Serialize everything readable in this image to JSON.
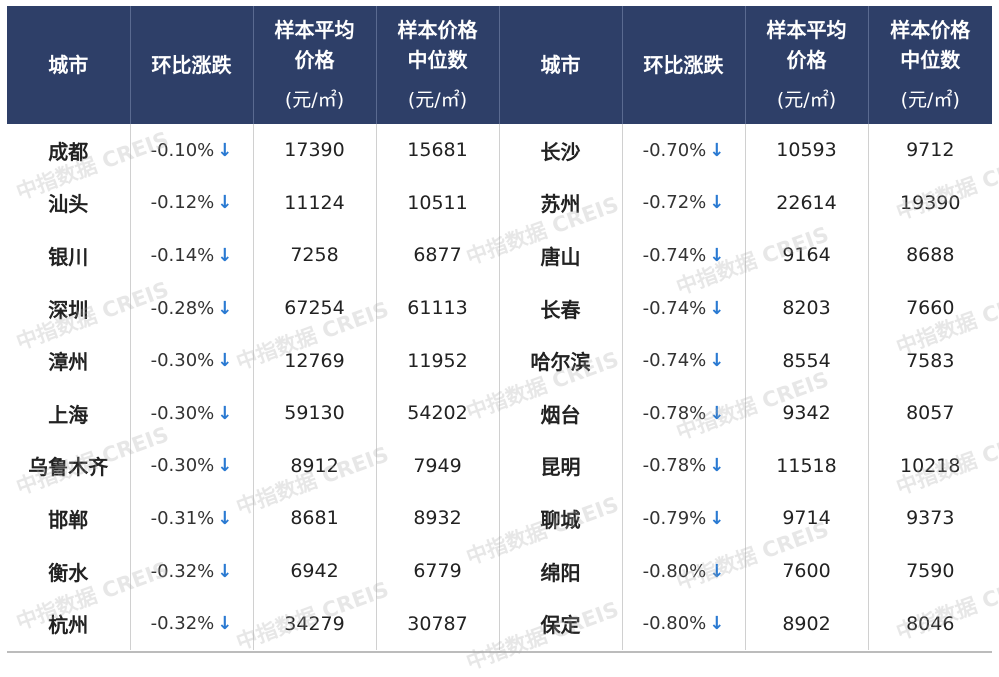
{
  "headers": {
    "city": "城市",
    "change": "环比涨跌",
    "avg_line1": "样本平均",
    "avg_line2": "价格",
    "median_line1": "样本价格",
    "median_line2": "中位数",
    "unit": "(元/㎡)"
  },
  "arrow": "↓",
  "left_rows": [
    {
      "city": "成都",
      "change": "-0.10%",
      "avg": "17390",
      "median": "15681"
    },
    {
      "city": "汕头",
      "change": "-0.12%",
      "avg": "11124",
      "median": "10511"
    },
    {
      "city": "银川",
      "change": "-0.14%",
      "avg": "7258",
      "median": "6877"
    },
    {
      "city": "深圳",
      "change": "-0.28%",
      "avg": "67254",
      "median": "61113"
    },
    {
      "city": "漳州",
      "change": "-0.30%",
      "avg": "12769",
      "median": "11952"
    },
    {
      "city": "上海",
      "change": "-0.30%",
      "avg": "59130",
      "median": "54202"
    },
    {
      "city": "乌鲁木齐",
      "change": "-0.30%",
      "avg": "8912",
      "median": "7949"
    },
    {
      "city": "邯郸",
      "change": "-0.31%",
      "avg": "8681",
      "median": "8932"
    },
    {
      "city": "衡水",
      "change": "-0.32%",
      "avg": "6942",
      "median": "6779"
    },
    {
      "city": "杭州",
      "change": "-0.32%",
      "avg": "34279",
      "median": "30787"
    }
  ],
  "right_rows": [
    {
      "city": "长沙",
      "change": "-0.70%",
      "avg": "10593",
      "median": "9712"
    },
    {
      "city": "苏州",
      "change": "-0.72%",
      "avg": "22614",
      "median": "19390"
    },
    {
      "city": "唐山",
      "change": "-0.74%",
      "avg": "9164",
      "median": "8688"
    },
    {
      "city": "长春",
      "change": "-0.74%",
      "avg": "8203",
      "median": "7660"
    },
    {
      "city": "哈尔滨",
      "change": "-0.74%",
      "avg": "8554",
      "median": "7583"
    },
    {
      "city": "烟台",
      "change": "-0.78%",
      "avg": "9342",
      "median": "8057"
    },
    {
      "city": "昆明",
      "change": "-0.78%",
      "avg": "11518",
      "median": "10218"
    },
    {
      "city": "聊城",
      "change": "-0.79%",
      "avg": "9714",
      "median": "9373"
    },
    {
      "city": "绵阳",
      "change": "-0.80%",
      "avg": "7600",
      "median": "7590"
    },
    {
      "city": "保定",
      "change": "-0.80%",
      "avg": "8902",
      "median": "8046"
    }
  ],
  "watermark": "中指数据 CREIS",
  "colors": {
    "header_bg": "#2e3f68",
    "arrow": "#2a7ad2"
  }
}
